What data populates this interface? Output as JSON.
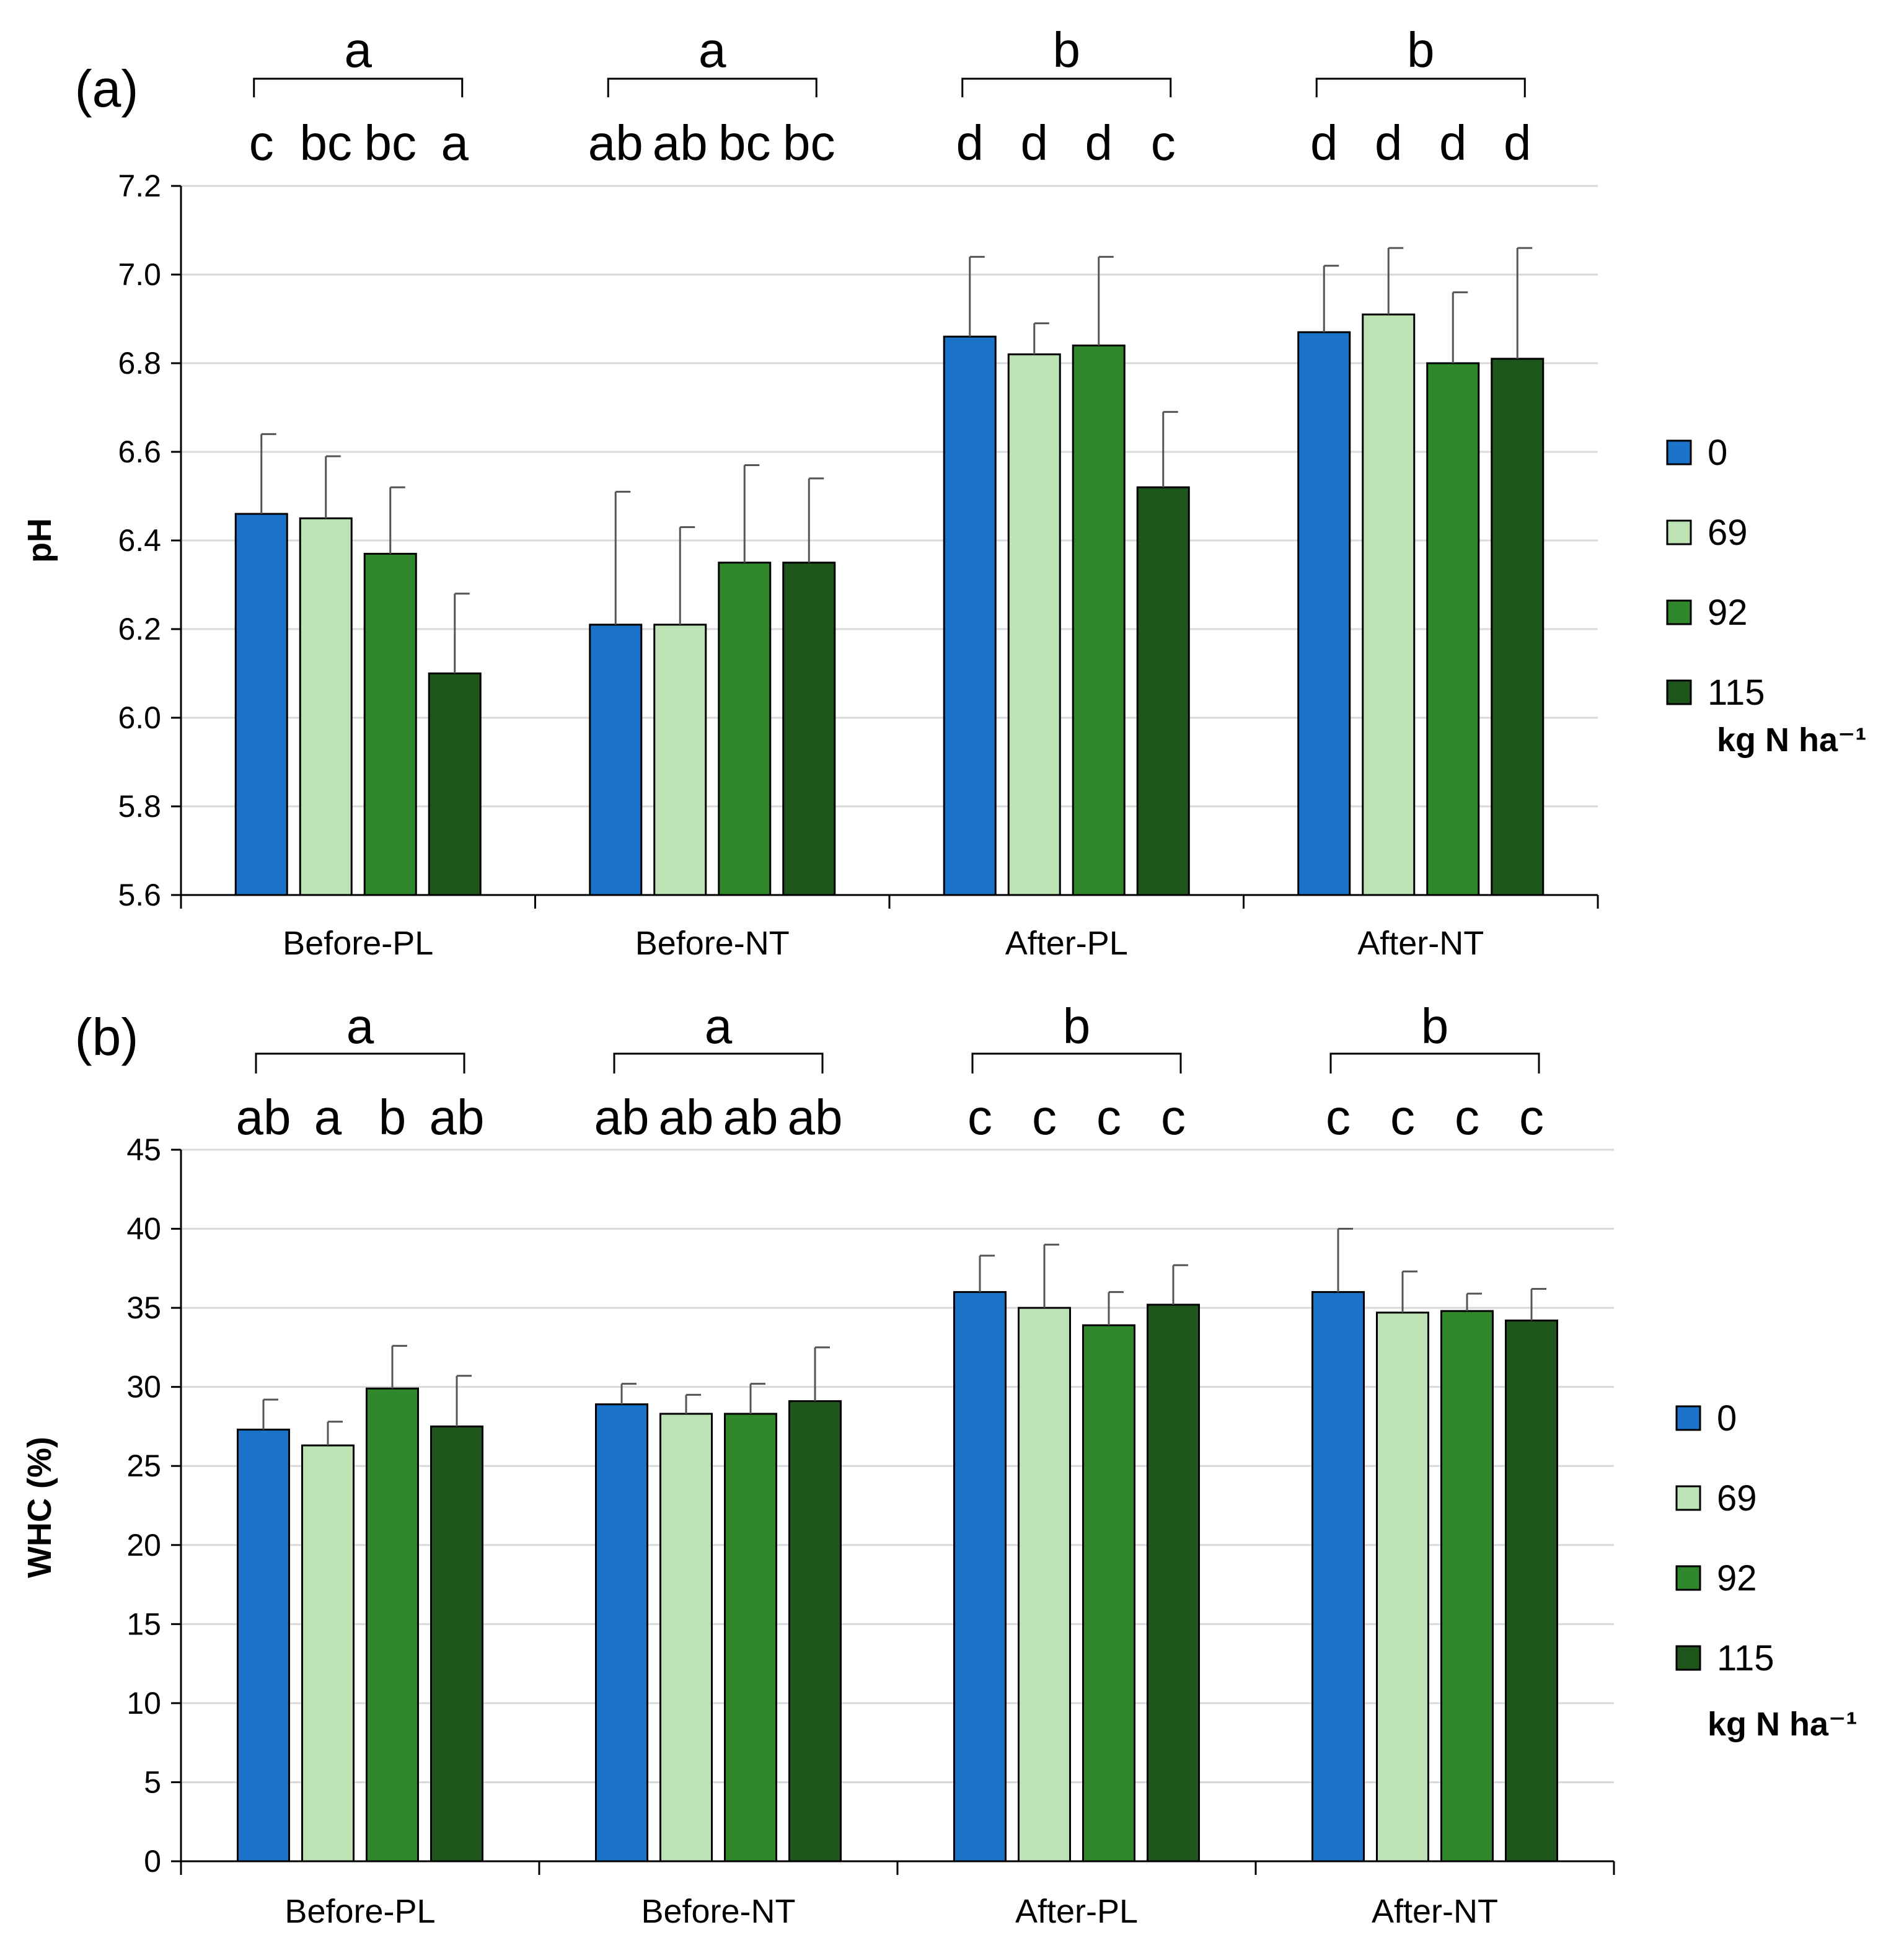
{
  "colors": {
    "n0": "#1a73c9",
    "n69": "#bde3b5",
    "n92": "#2f862b",
    "n115": "#1e561c",
    "bar_edge": "#000000",
    "grid": "#d9d9d9",
    "axis": "#000000",
    "errbar": "#555555"
  },
  "chart_data": [
    {
      "type": "bar",
      "panel_label": "(a)",
      "ylabel": "pH",
      "ylim": [
        5.6,
        7.2
      ],
      "yticks": [
        "5.6",
        "5.8",
        "6.0",
        "6.2",
        "6.4",
        "6.6",
        "6.8",
        "7.0",
        "7.2"
      ],
      "categories": [
        "Before-PL",
        "Before-NT",
        "After-PL",
        "After-NT"
      ],
      "series": [
        {
          "name": "0",
          "values": [
            6.46,
            6.21,
            6.86,
            6.87
          ],
          "errors": [
            0.18,
            0.3,
            0.18,
            0.15
          ]
        },
        {
          "name": "69",
          "values": [
            6.45,
            6.21,
            6.82,
            6.91
          ],
          "errors": [
            0.14,
            0.22,
            0.07,
            0.15
          ]
        },
        {
          "name": "92",
          "values": [
            6.37,
            6.35,
            6.84,
            6.8
          ],
          "errors": [
            0.15,
            0.22,
            0.2,
            0.16
          ]
        },
        {
          "name": "115",
          "values": [
            6.1,
            6.35,
            6.52,
            6.81
          ],
          "errors": [
            0.18,
            0.19,
            0.17,
            0.25
          ]
        }
      ],
      "group_letters": [
        "a",
        "a",
        "b",
        "b"
      ],
      "bar_letters": [
        [
          "c",
          "bc",
          "bc",
          "a"
        ],
        [
          "ab",
          "ab",
          "bc",
          "bc"
        ],
        [
          "d",
          "d",
          "d",
          "c"
        ],
        [
          "d",
          "d",
          "d",
          "d"
        ]
      ],
      "grid": true,
      "legend": {
        "position": "right",
        "entries": [
          "0",
          "69",
          "92",
          "115"
        ],
        "unit": "kg N ha⁻¹"
      }
    },
    {
      "type": "bar",
      "panel_label": "(b)",
      "ylabel": "WHC (%)",
      "ylim": [
        0,
        45
      ],
      "yticks": [
        "0",
        "5",
        "10",
        "15",
        "20",
        "25",
        "30",
        "35",
        "40",
        "45"
      ],
      "categories": [
        "Before-PL",
        "Before-NT",
        "After-PL",
        "After-NT"
      ],
      "series": [
        {
          "name": "0",
          "values": [
            27.3,
            28.9,
            36.0,
            36.0
          ],
          "errors": [
            1.9,
            1.3,
            2.3,
            4.0
          ]
        },
        {
          "name": "69",
          "values": [
            26.3,
            28.3,
            35.0,
            34.7
          ],
          "errors": [
            1.5,
            1.2,
            4.0,
            2.6
          ]
        },
        {
          "name": "92",
          "values": [
            29.9,
            28.3,
            33.9,
            34.8
          ],
          "errors": [
            2.7,
            1.9,
            2.1,
            1.1
          ]
        },
        {
          "name": "115",
          "values": [
            27.5,
            29.1,
            35.2,
            34.2
          ],
          "errors": [
            3.2,
            3.4,
            2.5,
            2.0
          ]
        }
      ],
      "group_letters": [
        "a",
        "a",
        "b",
        "b"
      ],
      "bar_letters": [
        [
          "ab",
          "a",
          "b",
          "ab"
        ],
        [
          "ab",
          "ab",
          "ab",
          "ab"
        ],
        [
          "c",
          "c",
          "c",
          "c"
        ],
        [
          "c",
          "c",
          "c",
          "c"
        ]
      ],
      "grid": true,
      "legend": {
        "position": "right",
        "entries": [
          "0",
          "69",
          "92",
          "115"
        ],
        "unit": "kg N ha⁻¹"
      }
    }
  ]
}
